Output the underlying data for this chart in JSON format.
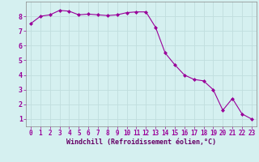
{
  "x": [
    0,
    1,
    2,
    3,
    4,
    5,
    6,
    7,
    8,
    9,
    10,
    11,
    12,
    13,
    14,
    15,
    16,
    17,
    18,
    19,
    20,
    21,
    22,
    23
  ],
  "y": [
    7.5,
    8.0,
    8.1,
    8.4,
    8.35,
    8.1,
    8.15,
    8.1,
    8.05,
    8.1,
    8.25,
    8.3,
    8.3,
    7.25,
    5.5,
    4.7,
    4.0,
    3.7,
    3.6,
    3.0,
    1.6,
    2.4,
    1.35,
    1.0
  ],
  "line_color": "#990099",
  "marker": "D",
  "markersize": 2.0,
  "linewidth": 0.8,
  "xlabel": "Windchill (Refroidissement éolien,°C)",
  "xlabel_fontsize": 6.0,
  "xlabel_color": "#660066",
  "xlabel_weight": "bold",
  "ylabel_ticks": [
    1,
    2,
    3,
    4,
    5,
    6,
    7,
    8
  ],
  "xlim": [
    -0.5,
    23.5
  ],
  "ylim": [
    0.5,
    9.0
  ],
  "bg_color": "#d5f0f0",
  "grid_color": "#c0dede",
  "tick_fontsize": 5.5,
  "tick_color": "#990099",
  "xtick_labels": [
    "0",
    "1",
    "2",
    "3",
    "4",
    "5",
    "6",
    "7",
    "8",
    "9",
    "10",
    "11",
    "12",
    "13",
    "14",
    "15",
    "16",
    "17",
    "18",
    "19",
    "20",
    "21",
    "22",
    "23"
  ]
}
